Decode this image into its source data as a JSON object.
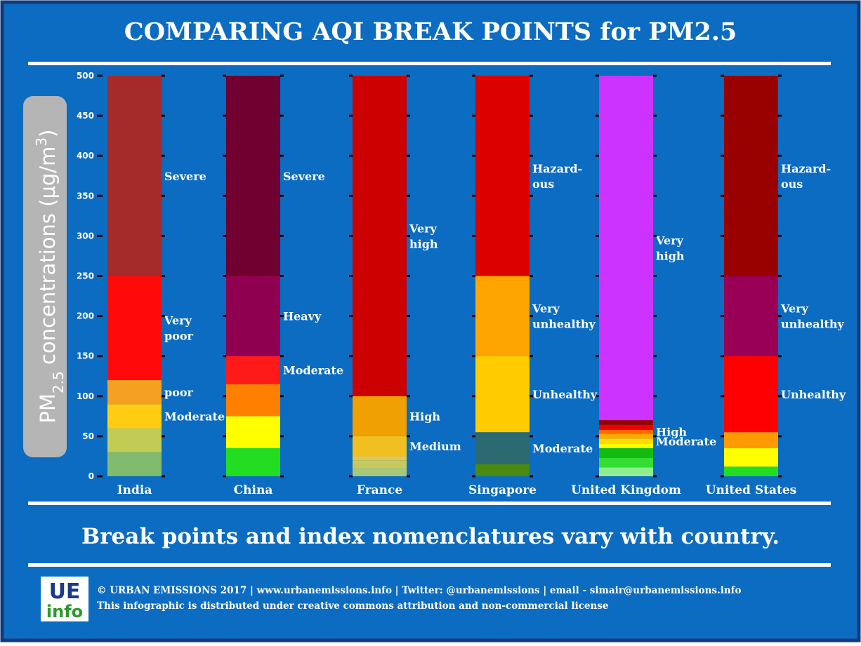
{
  "chart_data": {
    "type": "stacked-bar",
    "title": "COMPARING AQI BREAK POINTS for PM2.5",
    "y_label": [
      "PM",
      "2.5",
      " concentrations (μg/m",
      "3",
      ")"
    ],
    "ylim": [
      0,
      500
    ],
    "yticks": [
      0,
      50,
      100,
      150,
      200,
      250,
      300,
      350,
      400,
      450,
      500
    ],
    "bars": [
      {
        "name": "India",
        "segments": [
          {
            "value": 30,
            "color": "#80bb70"
          },
          {
            "value": 30,
            "color": "#c2cc55"
          },
          {
            "value": 30,
            "color": "#ffcc11",
            "label": [
              "Moderate"
            ]
          },
          {
            "value": 30,
            "color": "#f4a020",
            "label": [
              "poor"
            ]
          },
          {
            "value": 130,
            "color": "#ff0a0a",
            "label": [
              "Very",
              "poor"
            ]
          },
          {
            "value": 250,
            "color": "#a52a2a",
            "label": [
              "Severe"
            ]
          }
        ]
      },
      {
        "name": "China",
        "segments": [
          {
            "value": 35,
            "color": "#22dd22"
          },
          {
            "value": 40,
            "color": "#ffff00"
          },
          {
            "value": 40,
            "color": "#ff8000"
          },
          {
            "value": 35,
            "color": "#ff1a1a",
            "label": [
              "Moderate"
            ]
          },
          {
            "value": 100,
            "color": "#900050",
            "label": [
              "Heavy"
            ]
          },
          {
            "value": 250,
            "color": "#700030",
            "label": [
              "Severe"
            ]
          }
        ]
      },
      {
        "name": "France",
        "segments": [
          {
            "value": 10,
            "color": "#a8c878"
          },
          {
            "value": 10,
            "color": "#c8c860"
          },
          {
            "value": 5,
            "color": "#e0c850"
          },
          {
            "value": 25,
            "color": "#f0c020",
            "label": [
              "Medium"
            ]
          },
          {
            "value": 50,
            "color": "#f0a000",
            "label": [
              "High"
            ]
          },
          {
            "value": 400,
            "color": "#cc0000",
            "label": [
              "Very",
              "high"
            ]
          }
        ]
      },
      {
        "name": "Singapore",
        "segments": [
          {
            "value": 15,
            "color": "#4a8a10"
          },
          {
            "value": 40,
            "color": "#2a6a70",
            "label": [
              "Moderate"
            ]
          },
          {
            "value": 95,
            "color": "#ffcc00",
            "label": [
              "Unhealthy"
            ]
          },
          {
            "value": 100,
            "color": "#ffa500",
            "label": [
              "Very",
              "unhealthy"
            ]
          },
          {
            "value": 250,
            "color": "#dd0000",
            "label": [
              "Hazard-",
              "ous"
            ]
          }
        ]
      },
      {
        "name": "United Kingdom",
        "segments": [
          {
            "value": 11,
            "color": "#90ee90"
          },
          {
            "value": 12,
            "color": "#33dd33"
          },
          {
            "value": 12,
            "color": "#11bb11"
          },
          {
            "value": 6,
            "color": "#ffff00"
          },
          {
            "value": 6,
            "color": "#ffdd00",
            "label": [
              "Moderate"
            ]
          },
          {
            "value": 6,
            "color": "#ffaa00"
          },
          {
            "value": 5,
            "color": "#ff6600",
            "label": [
              "High"
            ]
          },
          {
            "value": 6,
            "color": "#ee0000"
          },
          {
            "value": 6,
            "color": "#990000"
          },
          {
            "value": 430,
            "color": "#cc33ff",
            "label": [
              "Very",
              "high"
            ]
          }
        ]
      },
      {
        "name": "United States",
        "segments": [
          {
            "value": 12,
            "color": "#22dd22"
          },
          {
            "value": 23,
            "color": "#ffff00"
          },
          {
            "value": 20,
            "color": "#ff9900"
          },
          {
            "value": 95,
            "color": "#ff0000",
            "label": [
              "Unhealthy"
            ]
          },
          {
            "value": 100,
            "color": "#990055",
            "label": [
              "Very",
              "unhealthy"
            ]
          },
          {
            "value": 250,
            "color": "#990000",
            "label": [
              "Hazard-",
              "ous"
            ]
          }
        ]
      }
    ]
  },
  "subtitle": "Break points and index nomenclatures vary with country.",
  "footer": {
    "logo": [
      "UE",
      "info"
    ],
    "lines": [
      "© URBAN EMISSIONS 2017 | www.urbanemissions.info | Twitter: @urbanemissions | email - simair@urbanemissions.info",
      "This infographic is distributed under creative commons attribution and non-commercial license"
    ]
  }
}
